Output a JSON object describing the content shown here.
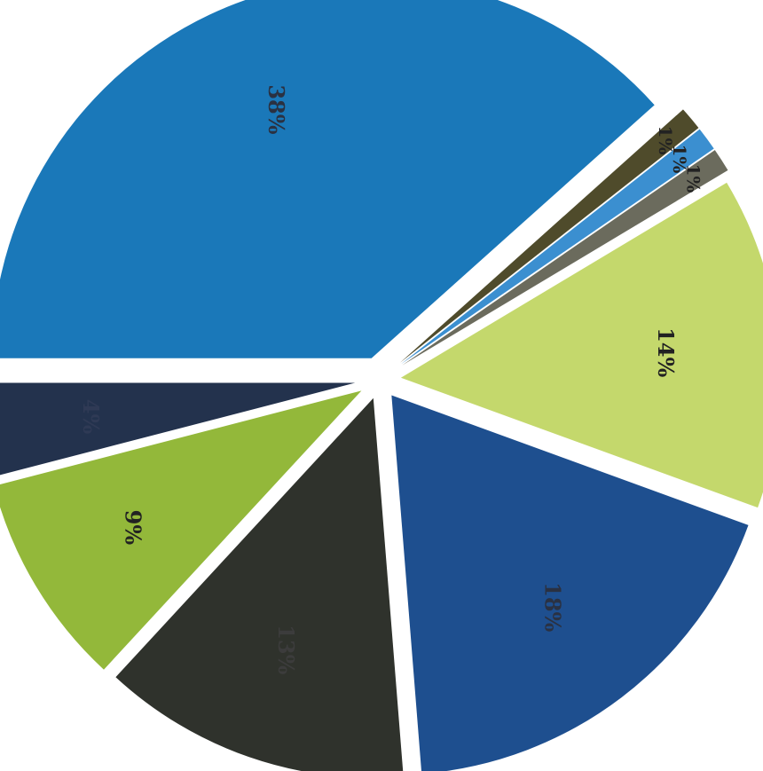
{
  "chart_data": {
    "type": "pie",
    "exploded": true,
    "start_angle_deg": 180,
    "direction": "clockwise",
    "slices": [
      {
        "label": "38%",
        "value": 38,
        "color": "#1a78b9"
      },
      {
        "label": "1%",
        "value": 1,
        "color": "#4f4b2b"
      },
      {
        "label": "1%",
        "value": 1,
        "color": "#3b8fd0"
      },
      {
        "label": "1%",
        "value": 1,
        "color": "#6b6b5d"
      },
      {
        "label": "14%",
        "value": 14,
        "color": "#c4d86c"
      },
      {
        "label": "18%",
        "value": 18,
        "color": "#1e4f8f"
      },
      {
        "label": "13%",
        "value": 13,
        "color": "#2f322c"
      },
      {
        "label": "9%",
        "value": 9,
        "color": "#93b83a"
      },
      {
        "label": "4%",
        "value": 4,
        "color": "#23324d"
      }
    ],
    "label_colors": [
      "#2a3142",
      "#222222",
      "#222222",
      "#222222",
      "#222222",
      "#2a3142",
      "#3c3c3c",
      "#222222",
      "#2f3a55"
    ],
    "title": "",
    "legend": "none"
  }
}
